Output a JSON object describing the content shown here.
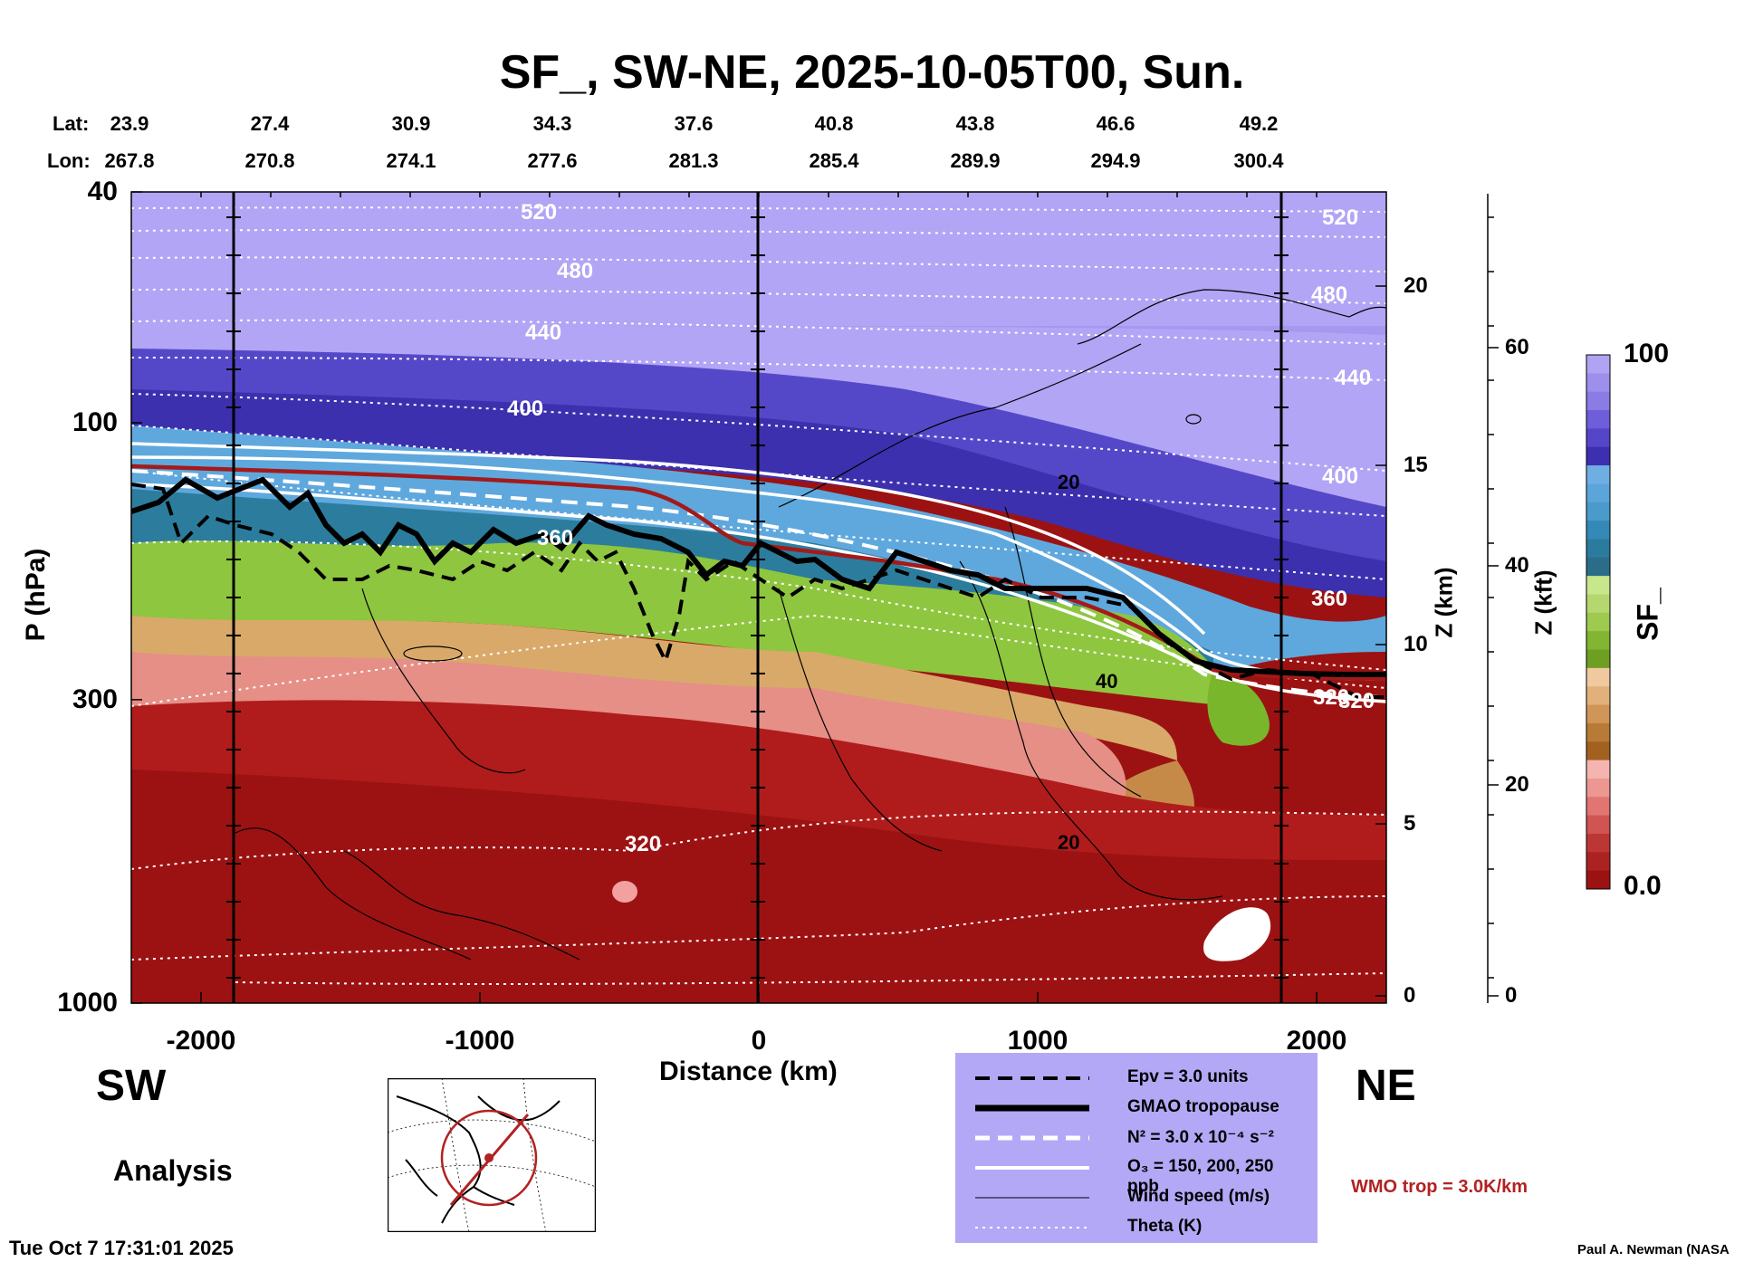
{
  "title": "SF_, SW-NE, 2025-10-05T00, Sun.",
  "coords": {
    "lat_label": "Lat:",
    "lon_label": "Lon:",
    "lat": [
      "23.9",
      "27.4",
      "30.9",
      "34.3",
      "37.6",
      "40.8",
      "43.8",
      "46.6",
      "49.2"
    ],
    "lon": [
      "267.8",
      "270.8",
      "274.1",
      "277.6",
      "281.3",
      "285.4",
      "289.9",
      "294.9",
      "300.4"
    ]
  },
  "direction": {
    "left": "SW",
    "right": "NE"
  },
  "analysis_label": "Analysis",
  "timestamp": "Tue Oct  7 17:31:01 2025",
  "author": "Paul A. Newman (NASA",
  "wmo_note": "WMO trop = 3.0K/km",
  "legend": [
    {
      "style": "dashed-black",
      "text": "Epv = 3.0 units"
    },
    {
      "style": "thick-black",
      "text": "GMAO tropopause"
    },
    {
      "style": "dashed-white",
      "text": "N² = 3.0 x 10⁻⁴ s⁻²"
    },
    {
      "style": "solid-white",
      "text": "O₃ = 150, 200, 250 ppb"
    },
    {
      "style": "thin-black",
      "text": "Wind speed (m/s)"
    },
    {
      "style": "dotted-white",
      "text": "Theta (K)"
    }
  ],
  "colorbar": {
    "label": "SF_",
    "max": "100",
    "min": "0.0"
  },
  "chart_data": {
    "type": "heatmap",
    "xlabel": "Distance (km)",
    "ylabel": "P (hPa)",
    "ylabel_right": "Z (km)",
    "ylabel_far_right": "Z (kft)",
    "x_ticks": [
      "-2000",
      "-1000",
      "0",
      "1000",
      "2000"
    ],
    "y_ticks": [
      "40",
      "100",
      "300",
      "1000"
    ],
    "z_km_ticks": [
      "20",
      "15",
      "10",
      "5",
      "0"
    ],
    "z_kft_ticks": [
      "60",
      "40",
      "20",
      "0"
    ],
    "xlim": [
      -2250,
      2250
    ],
    "ylim": [
      1000,
      40
    ],
    "yscale": "log",
    "theta_contour_labels": [
      "520",
      "480",
      "440",
      "400",
      "360",
      "320",
      "520",
      "480",
      "440",
      "400",
      "360",
      "320",
      "320"
    ],
    "wind_contour_labels": [
      "20",
      "40",
      "20"
    ]
  }
}
